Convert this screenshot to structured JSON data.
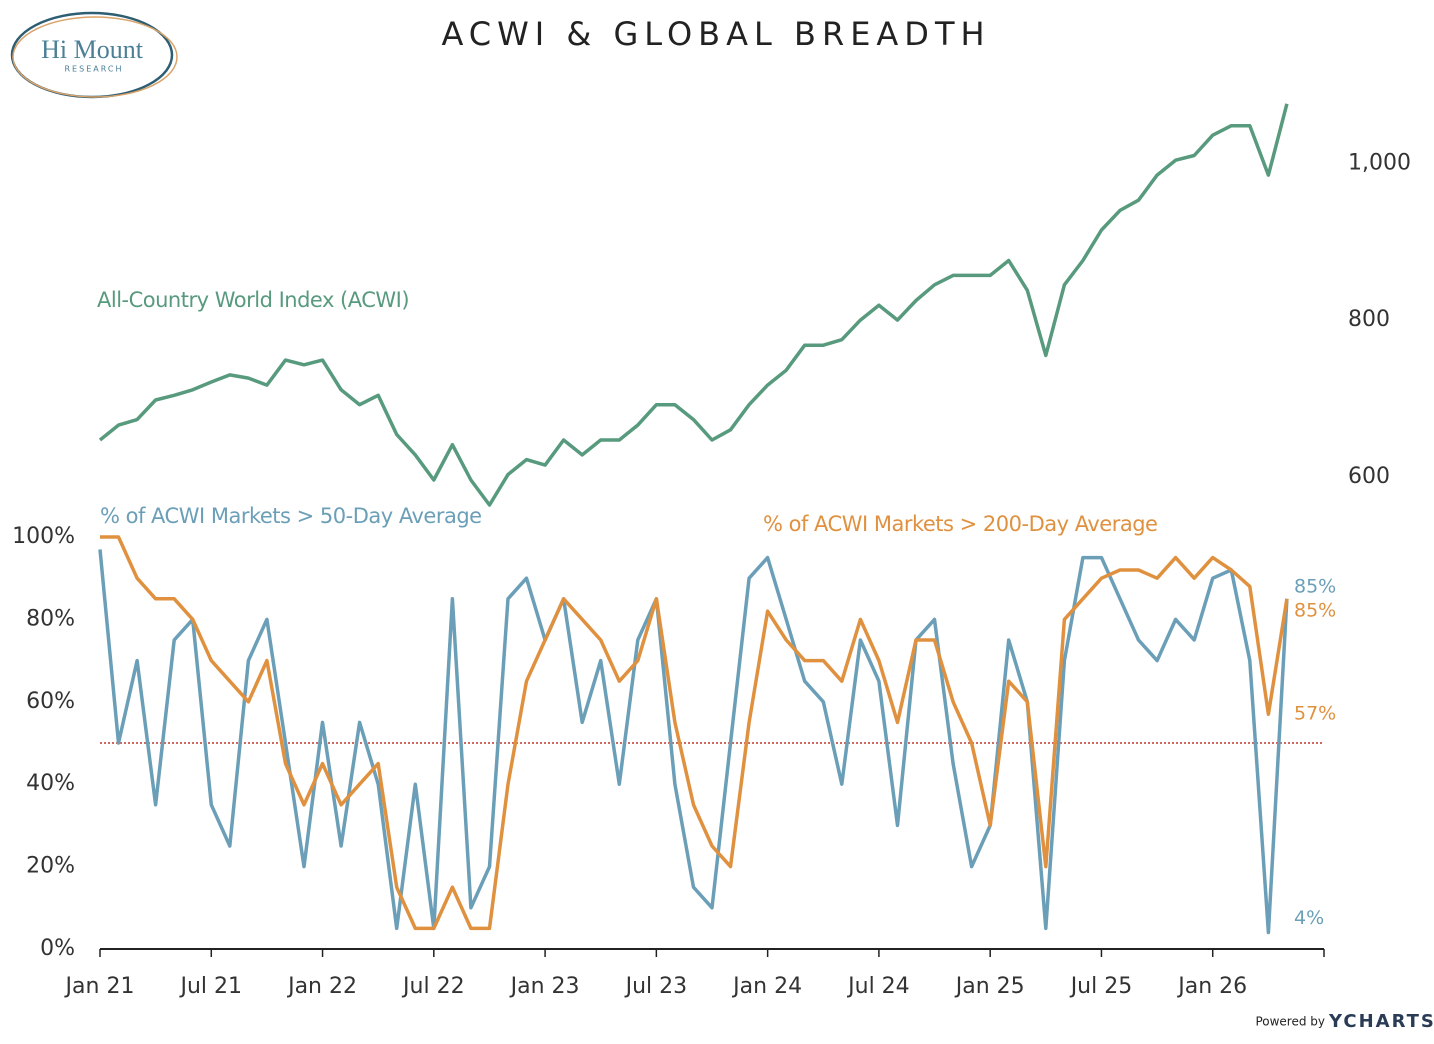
{
  "logo": {
    "name": "Hi Mount",
    "sub": "RESEARCH"
  },
  "footer": {
    "powered": "Powered by",
    "brand": "YCHARTS"
  },
  "chart_data": {
    "type": "line",
    "title": "ACWI & GLOBAL BREADTH",
    "x": [
      "2021-01",
      "2021-02",
      "2021-03",
      "2021-04",
      "2021-05",
      "2021-06",
      "2021-07",
      "2021-08",
      "2021-09",
      "2021-10",
      "2021-11",
      "2021-12",
      "2022-01",
      "2022-02",
      "2022-03",
      "2022-04",
      "2022-05",
      "2022-06",
      "2022-07",
      "2022-08",
      "2022-09",
      "2022-10",
      "2022-11",
      "2022-12",
      "2023-01",
      "2023-02",
      "2023-03",
      "2023-04",
      "2023-05",
      "2023-06",
      "2023-07",
      "2023-08",
      "2023-09",
      "2023-10",
      "2023-11",
      "2023-12",
      "2024-01",
      "2024-02",
      "2024-03",
      "2024-04",
      "2024-05",
      "2024-06",
      "2024-07",
      "2024-08",
      "2024-09",
      "2024-10",
      "2024-11",
      "2024-12",
      "2025-01",
      "2025-02",
      "2025-03",
      "2025-04",
      "2025-05",
      "2025-06",
      "2025-07",
      "2025-08",
      "2025-09",
      "2025-10",
      "2025-11",
      "2025-12",
      "2026-01",
      "2026-02",
      "2026-03",
      "2026-04",
      "2026-05"
    ],
    "xlim": [
      "2021-01",
      "2026-07"
    ],
    "xticks": [
      {
        "value": "2021-01",
        "label": "Jan 21"
      },
      {
        "value": "2021-07",
        "label": "Jul 21"
      },
      {
        "value": "2022-01",
        "label": "Jan 22"
      },
      {
        "value": "2022-07",
        "label": "Jul 22"
      },
      {
        "value": "2023-01",
        "label": "Jan 23"
      },
      {
        "value": "2023-07",
        "label": "Jul 23"
      },
      {
        "value": "2024-01",
        "label": "Jan 24"
      },
      {
        "value": "2024-07",
        "label": "Jul 24"
      },
      {
        "value": "2025-01",
        "label": "Jan 25"
      },
      {
        "value": "2025-07",
        "label": "Jul 25"
      },
      {
        "value": "2026-01",
        "label": "Jan 26"
      }
    ],
    "ylim": [
      0,
      100
    ],
    "yticks": [
      {
        "value": 0,
        "label": "0%"
      },
      {
        "value": 20,
        "label": "20%"
      },
      {
        "value": 40,
        "label": "40%"
      },
      {
        "value": 60,
        "label": "60%"
      },
      {
        "value": 80,
        "label": "80%"
      },
      {
        "value": 100,
        "label": "100%"
      }
    ],
    "y2lim": [
      550,
      1100
    ],
    "y2ticks": [
      600,
      800,
      {
        "value": 1000,
        "label": "1,000"
      }
    ],
    "reference_line": {
      "value": 50,
      "color": "#c0392b"
    },
    "series": [
      {
        "name": "All-Country World Index (ACWI)",
        "color": "#579a7d",
        "axis": "y2",
        "values": [
          647,
          666,
          673,
          698,
          704,
          711,
          721,
          730,
          726,
          717,
          749,
          743,
          749,
          711,
          692,
          704,
          654,
          628,
          596,
          641,
          596,
          564,
          603,
          622,
          615,
          647,
          628,
          647,
          647,
          666,
          692,
          692,
          673,
          647,
          660,
          692,
          717,
          736,
          768,
          768,
          775,
          800,
          819,
          800,
          825,
          845,
          857,
          857,
          857,
          876,
          838,
          755,
          845,
          876,
          915,
          940,
          953,
          985,
          1004,
          1010,
          1036,
          1048,
          1048,
          985,
          1076
        ]
      },
      {
        "name": "% of ACWI Markets > 50-Day Average",
        "color": "#6b9fb8",
        "values": [
          97,
          50,
          70,
          35,
          75,
          80,
          35,
          25,
          70,
          80,
          50,
          20,
          55,
          25,
          55,
          40,
          5,
          40,
          5,
          85,
          10,
          20,
          85,
          90,
          75,
          85,
          55,
          70,
          40,
          75,
          85,
          40,
          15,
          10,
          50,
          90,
          95,
          80,
          65,
          60,
          40,
          75,
          65,
          30,
          75,
          80,
          45,
          20,
          30,
          75,
          60,
          5,
          70,
          95,
          95,
          85,
          75,
          70,
          80,
          75,
          90,
          92,
          70,
          4,
          85
        ]
      },
      {
        "name": "% of ACWI Markets > 200-Day Average",
        "color": "#e0913f",
        "values": [
          100,
          100,
          90,
          85,
          85,
          80,
          70,
          65,
          60,
          70,
          45,
          35,
          45,
          35,
          40,
          45,
          15,
          5,
          5,
          15,
          5,
          5,
          40,
          65,
          75,
          85,
          80,
          75,
          65,
          70,
          85,
          55,
          35,
          25,
          20,
          55,
          82,
          75,
          70,
          70,
          65,
          80,
          70,
          55,
          75,
          75,
          60,
          50,
          30,
          65,
          60,
          20,
          80,
          85,
          90,
          92,
          92,
          90,
          95,
          90,
          95,
          92,
          88,
          57,
          85
        ]
      }
    ],
    "annotations": [
      {
        "label": "85%",
        "value": 85,
        "color": "#6b9fb8"
      },
      {
        "label": "85%",
        "value": 85,
        "color": "#e0913f"
      },
      {
        "label": "57%",
        "value": 57,
        "color": "#e0913f"
      },
      {
        "label": "4%",
        "value": 4,
        "color": "#6b9fb8"
      }
    ]
  }
}
